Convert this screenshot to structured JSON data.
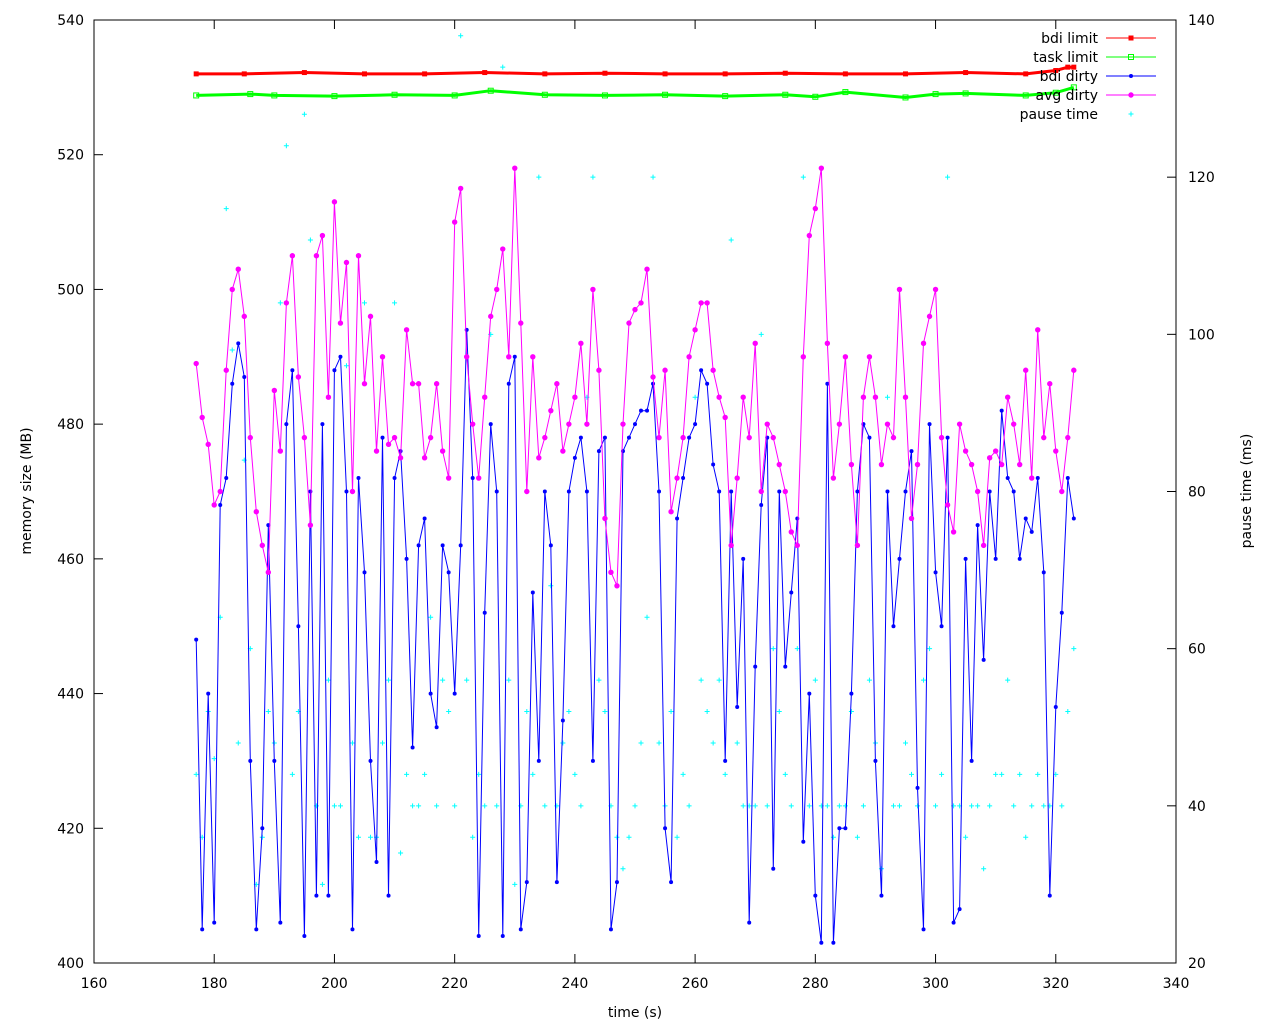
{
  "chart_data": {
    "type": "line",
    "xlabel": "time (s)",
    "ylabel": "memory size (MB)",
    "y2label": "pause time (ms)",
    "xlim": [
      160,
      340
    ],
    "ylim": [
      400,
      540
    ],
    "y2lim": [
      20,
      140
    ],
    "x_ticks": [
      "160",
      "180",
      "200",
      "220",
      "240",
      "260",
      "280",
      "300",
      "320",
      "340"
    ],
    "y_ticks": [
      "400",
      "420",
      "440",
      "460",
      "480",
      "500",
      "520",
      "540"
    ],
    "y2_ticks": [
      "20",
      "40",
      "60",
      "80",
      "100",
      "120",
      "140"
    ],
    "grid": false,
    "legend_position": "top-right",
    "series": [
      {
        "name": "bdi limit",
        "color": "#ff0000",
        "marker": "square-filled",
        "axis": "left",
        "x": [
          177,
          185,
          195,
          205,
          215,
          225,
          235,
          245,
          255,
          265,
          275,
          285,
          295,
          305,
          315,
          320,
          322,
          323
        ],
        "y": [
          532,
          532,
          532.2,
          532,
          532,
          532.2,
          532,
          532.1,
          532,
          532,
          532.1,
          532,
          532,
          532.2,
          532,
          532.5,
          533,
          533
        ]
      },
      {
        "name": "task limit",
        "color": "#00ff00",
        "marker": "square-open",
        "axis": "left",
        "x": [
          177,
          186,
          190,
          200,
          210,
          220,
          226,
          235,
          245,
          255,
          265,
          275,
          280,
          285,
          295,
          300,
          305,
          315,
          320,
          323
        ],
        "y": [
          528.8,
          529,
          528.8,
          528.7,
          528.9,
          528.8,
          529.5,
          528.9,
          528.8,
          528.9,
          528.7,
          528.9,
          528.6,
          529.3,
          528.5,
          529,
          529.1,
          528.8,
          529.2,
          530
        ]
      },
      {
        "name": "bdi dirty",
        "color": "#0000ff",
        "marker": "dot-filled",
        "axis": "left",
        "x": [
          177,
          178,
          179,
          180,
          181,
          182,
          183,
          184,
          185,
          186,
          187,
          188,
          189,
          190,
          191,
          192,
          193,
          194,
          195,
          196,
          197,
          198,
          199,
          200,
          201,
          202,
          203,
          204,
          205,
          206,
          207,
          208,
          209,
          210,
          211,
          212,
          213,
          214,
          215,
          216,
          217,
          218,
          219,
          220,
          221,
          222,
          223,
          224,
          225,
          226,
          227,
          228,
          229,
          230,
          231,
          232,
          233,
          234,
          235,
          236,
          237,
          238,
          239,
          240,
          241,
          242,
          243,
          244,
          245,
          246,
          247,
          248,
          249,
          250,
          251,
          252,
          253,
          254,
          255,
          256,
          257,
          258,
          259,
          260,
          261,
          262,
          263,
          264,
          265,
          266,
          267,
          268,
          269,
          270,
          271,
          272,
          273,
          274,
          275,
          276,
          277,
          278,
          279,
          280,
          281,
          282,
          283,
          284,
          285,
          286,
          287,
          288,
          289,
          290,
          291,
          292,
          293,
          294,
          295,
          296,
          297,
          298,
          299,
          300,
          301,
          302,
          303,
          304,
          305,
          306,
          307,
          308,
          309,
          310,
          311,
          312,
          313,
          314,
          315,
          316,
          317,
          318,
          319,
          320,
          321,
          322,
          323
        ],
        "y": [
          448,
          405,
          440,
          406,
          468,
          472,
          486,
          492,
          487,
          430,
          405,
          420,
          465,
          430,
          406,
          480,
          488,
          450,
          404,
          470,
          410,
          480,
          410,
          488,
          490,
          470,
          405,
          472,
          458,
          430,
          415,
          478,
          410,
          472,
          476,
          460,
          432,
          462,
          466,
          440,
          435,
          462,
          458,
          440,
          462,
          494,
          472,
          404,
          452,
          480,
          470,
          404,
          486,
          490,
          405,
          412,
          455,
          430,
          470,
          462,
          412,
          436,
          470,
          475,
          478,
          470,
          430,
          476,
          478,
          405,
          412,
          476,
          478,
          480,
          482,
          482,
          486,
          470,
          420,
          412,
          466,
          472,
          478,
          480,
          488,
          486,
          474,
          470,
          430,
          470,
          438,
          460,
          406,
          444,
          468,
          478,
          414,
          470,
          444,
          455,
          466,
          418,
          440,
          410,
          403,
          486,
          403,
          420,
          420,
          440,
          470,
          480,
          478,
          430,
          410,
          470,
          450,
          460,
          470,
          476,
          426,
          405,
          480,
          458,
          450,
          478,
          406,
          408,
          460,
          430,
          465,
          445,
          470,
          460,
          482,
          472,
          470,
          460,
          466,
          464,
          472,
          458,
          410,
          438,
          452,
          472,
          466
        ]
      },
      {
        "name": "avg dirty",
        "color": "#ff00ff",
        "marker": "dot-open",
        "axis": "left",
        "x": [
          177,
          178,
          179,
          180,
          181,
          182,
          183,
          184,
          185,
          186,
          187,
          188,
          189,
          190,
          191,
          192,
          193,
          194,
          195,
          196,
          197,
          198,
          199,
          200,
          201,
          202,
          203,
          204,
          205,
          206,
          207,
          208,
          209,
          210,
          211,
          212,
          213,
          214,
          215,
          216,
          217,
          218,
          219,
          220,
          221,
          222,
          223,
          224,
          225,
          226,
          227,
          228,
          229,
          230,
          231,
          232,
          233,
          234,
          235,
          236,
          237,
          238,
          239,
          240,
          241,
          242,
          243,
          244,
          245,
          246,
          247,
          248,
          249,
          250,
          251,
          252,
          253,
          254,
          255,
          256,
          257,
          258,
          259,
          260,
          261,
          262,
          263,
          264,
          265,
          266,
          267,
          268,
          269,
          270,
          271,
          272,
          273,
          274,
          275,
          276,
          277,
          278,
          279,
          280,
          281,
          282,
          283,
          284,
          285,
          286,
          287,
          288,
          289,
          290,
          291,
          292,
          293,
          294,
          295,
          296,
          297,
          298,
          299,
          300,
          301,
          302,
          303,
          304,
          305,
          306,
          307,
          308,
          309,
          310,
          311,
          312,
          313,
          314,
          315,
          316,
          317,
          318,
          319,
          320,
          321,
          322,
          323
        ],
        "y": [
          489,
          481,
          477,
          468,
          470,
          488,
          500,
          503,
          496,
          478,
          467,
          462,
          458,
          485,
          476,
          498,
          505,
          487,
          478,
          465,
          505,
          508,
          484,
          513,
          495,
          504,
          470,
          505,
          486,
          496,
          476,
          490,
          477,
          478,
          475,
          494,
          486,
          486,
          475,
          478,
          486,
          476,
          472,
          510,
          515,
          490,
          480,
          472,
          484,
          496,
          500,
          506,
          490,
          518,
          495,
          470,
          490,
          475,
          478,
          482,
          486,
          476,
          480,
          484,
          492,
          480,
          500,
          488,
          466,
          458,
          456,
          480,
          495,
          497,
          498,
          503,
          487,
          478,
          488,
          467,
          472,
          478,
          490,
          494,
          498,
          498,
          488,
          484,
          481,
          462,
          472,
          484,
          478,
          492,
          470,
          480,
          478,
          474,
          470,
          464,
          462,
          490,
          508,
          512,
          518,
          492,
          472,
          480,
          490,
          474,
          462,
          484,
          490,
          484,
          474,
          480,
          478,
          500,
          484,
          466,
          474,
          492,
          496,
          500,
          478,
          468,
          464,
          480,
          476,
          474,
          470,
          462,
          475,
          476,
          474,
          484,
          480,
          474,
          488,
          472,
          494,
          478,
          486,
          476,
          470,
          478,
          488
        ]
      },
      {
        "name": "pause time",
        "color": "#00ffff",
        "marker": "plus",
        "axis": "right",
        "x": [
          177,
          178,
          179,
          180,
          181,
          182,
          183,
          184,
          185,
          186,
          187,
          188,
          189,
          190,
          191,
          192,
          193,
          194,
          195,
          196,
          197,
          198,
          199,
          200,
          201,
          202,
          203,
          204,
          205,
          206,
          207,
          208,
          209,
          210,
          211,
          212,
          213,
          214,
          215,
          216,
          217,
          218,
          219,
          220,
          221,
          222,
          223,
          224,
          225,
          226,
          227,
          228,
          229,
          230,
          231,
          232,
          233,
          234,
          235,
          236,
          237,
          238,
          239,
          240,
          241,
          242,
          243,
          244,
          245,
          246,
          247,
          248,
          249,
          250,
          251,
          252,
          253,
          254,
          255,
          256,
          257,
          258,
          259,
          260,
          261,
          262,
          263,
          264,
          265,
          266,
          267,
          268,
          269,
          270,
          271,
          272,
          273,
          274,
          275,
          276,
          277,
          278,
          279,
          280,
          281,
          282,
          283,
          284,
          285,
          286,
          287,
          288,
          289,
          290,
          291,
          292,
          293,
          294,
          295,
          296,
          297,
          298,
          299,
          300,
          301,
          302,
          303,
          304,
          305,
          306,
          307,
          308,
          309,
          310,
          311,
          312,
          313,
          314,
          315,
          316,
          317,
          318,
          319,
          320,
          321,
          322,
          323
        ],
        "y": [
          44,
          36,
          52,
          46,
          64,
          116,
          98,
          48,
          84,
          60,
          30,
          36,
          52,
          48,
          104,
          124,
          44,
          52,
          128,
          112,
          40,
          30,
          56,
          40,
          40,
          96,
          48,
          36,
          104,
          36,
          36,
          48,
          56,
          104,
          34,
          44,
          40,
          40,
          44,
          64,
          40,
          56,
          52,
          40,
          138,
          56,
          36,
          44,
          40,
          100,
          40,
          134,
          56,
          30,
          40,
          52,
          44,
          120,
          40,
          68,
          40,
          48,
          52,
          44,
          40,
          92,
          120,
          56,
          52,
          40,
          36,
          32,
          36,
          40,
          48,
          64,
          120,
          48,
          40,
          52,
          36,
          44,
          40,
          92,
          56,
          52,
          48,
          56,
          44,
          112,
          48,
          40,
          40,
          40,
          100,
          40,
          60,
          52,
          44,
          40,
          60,
          120,
          40,
          56,
          40,
          40,
          36,
          40,
          40,
          52,
          36,
          40,
          56,
          48,
          32,
          92,
          40,
          40,
          48,
          44,
          40,
          56,
          60,
          40,
          44,
          120,
          40,
          40,
          36,
          40,
          40,
          32,
          40,
          44,
          44,
          56,
          40,
          44,
          36,
          40,
          44,
          40,
          40,
          44,
          40,
          52,
          60
        ]
      }
    ]
  }
}
